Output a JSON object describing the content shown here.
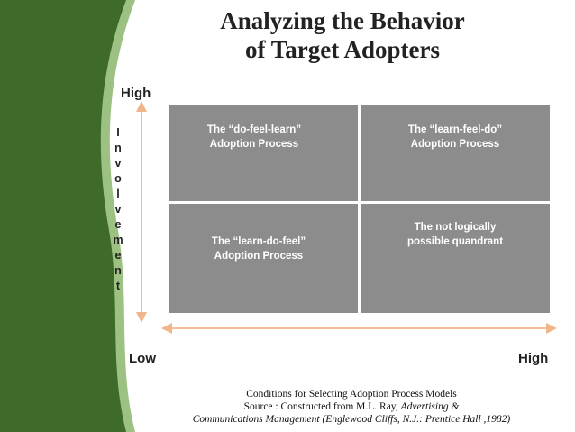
{
  "title": {
    "lines": [
      "Analyzing the Behavior",
      "of Target Adopters"
    ]
  },
  "axes": {
    "y_high": "High",
    "y_label": "Involvement",
    "x_low": "Low",
    "x_high": "High"
  },
  "quadrants": [
    {
      "lines": [
        "The “do-feel-learn”",
        "Adoption Process"
      ]
    },
    {
      "lines": [
        "The “learn-feel-do”",
        "Adoption  Process"
      ]
    },
    {
      "lines": [
        "The “learn-do-feel”",
        "Adoption Process"
      ]
    },
    {
      "lines": [
        "The not logically",
        "possible quandrant"
      ]
    }
  ],
  "caption": {
    "line1": "Conditions for Selecting Adoption Process Models",
    "line2": "Source : Constructed from M.L. Ray, ",
    "line2_italic": "Advertising &",
    "line3_italic": "Communications Management (Englewood Cliffs, N.J.: Prentice Hall ,1982)"
  }
}
